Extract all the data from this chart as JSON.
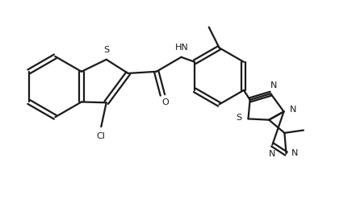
{
  "background_color": "#ffffff",
  "line_color": "#1a1a1a",
  "line_width": 1.6,
  "figsize": [
    4.36,
    2.58
  ],
  "dpi": 100,
  "xlim": [
    0,
    10
  ],
  "ylim": [
    0,
    6
  ]
}
